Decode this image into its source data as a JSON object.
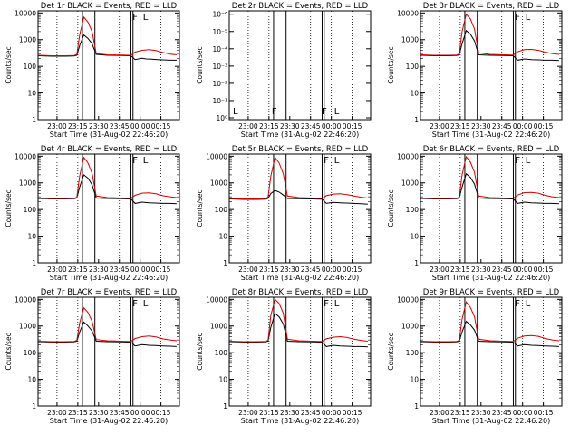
{
  "chart_data": {
    "type": "line",
    "xlabel": "Start Time (31-Aug-02 22:46:20)",
    "ylabel": "Counts/sec",
    "x_ticks": [
      "23:00",
      "23:15",
      "23:30",
      "23:45",
      "00:00",
      "00:15"
    ],
    "x_tick_minutes": [
      13.67,
      28.67,
      43.67,
      58.67,
      73.67,
      88.67
    ],
    "xlim_minutes": [
      0,
      102
    ],
    "yscale": "log",
    "ylim": [
      1,
      12000
    ],
    "y_ticks": [
      "1",
      "10",
      "100",
      "1000",
      "10000"
    ],
    "markers": {
      "solid_minutes": [
        32,
        41,
        67,
        68.5
      ],
      "dotted_minutes": [
        13.67,
        28.67,
        58.67,
        73.67,
        88.67
      ],
      "flags": [
        {
          "label": "F",
          "minutes": 67.5
        },
        {
          "label": "L",
          "minutes": 75
        }
      ]
    },
    "panels": [
      {
        "title": "Det 1r  BLACK = Events, RED = LLD",
        "series": [
          {
            "color": "#000000",
            "x": [
              0,
              10,
              20,
              26,
              28,
              30,
              33,
              36,
              39,
              42,
              50,
              60,
              65,
              67,
              70,
              75,
              78,
              82,
              86,
              90,
              95,
              100
            ],
            "y": [
              250,
              240,
              240,
              245,
              260,
              600,
              1500,
              1100,
              700,
              280,
              260,
              255,
              250,
              250,
              180,
              200,
              190,
              185,
              180,
              175,
              170,
              170
            ]
          },
          {
            "color": "#d40000",
            "x": [
              0,
              10,
              20,
              26,
              28,
              30,
              33,
              36,
              39,
              42,
              50,
              60,
              65,
              67,
              70,
              75,
              80,
              85,
              90,
              95,
              100
            ],
            "y": [
              260,
              250,
              250,
              255,
              280,
              1500,
              7000,
              4500,
              2000,
              300,
              270,
              265,
              260,
              260,
              340,
              400,
              420,
              390,
              330,
              290,
              270
            ]
          }
        ]
      },
      {
        "title": "Det 2r  BLACK = Events, RED = LLD",
        "y_ticks": [
          "10⁰",
          "10⁻¹",
          "10⁻²",
          "10⁻³",
          "10⁻⁴",
          "10⁻⁵",
          "10⁻⁶"
        ],
        "flags": [
          {
            "label": "L",
            "minutes": 2
          },
          {
            "label": "F",
            "minutes": 30
          },
          {
            "label": "F",
            "minutes": 66
          },
          {
            "label": "L",
            "minutes": 75
          }
        ],
        "series": []
      },
      {
        "title": "Det 3r  BLACK = Events, RED = LLD",
        "series": [
          {
            "color": "#000000",
            "x": [
              0,
              10,
              20,
              26,
              28,
              30,
              33,
              36,
              39,
              42,
              50,
              60,
              65,
              67,
              70,
              75,
              80,
              85,
              90,
              95,
              100
            ],
            "y": [
              260,
              250,
              250,
              255,
              270,
              700,
              2200,
              1600,
              900,
              270,
              260,
              255,
              250,
              250,
              170,
              190,
              180,
              175,
              170,
              170,
              165
            ]
          },
          {
            "color": "#d40000",
            "x": [
              0,
              10,
              20,
              26,
              28,
              30,
              33,
              36,
              39,
              42,
              50,
              60,
              65,
              67,
              70,
              75,
              80,
              85,
              90,
              95,
              100
            ],
            "y": [
              270,
              260,
              260,
              265,
              290,
              2000,
              9000,
              6000,
              2500,
              320,
              280,
              270,
              265,
              265,
              350,
              420,
              430,
              400,
              340,
              300,
              280
            ]
          }
        ]
      },
      {
        "title": "Det 4r  BLACK = Events, RED = LLD",
        "series": [
          {
            "color": "#000000",
            "x": [
              0,
              10,
              20,
              26,
              28,
              30,
              33,
              36,
              39,
              42,
              50,
              60,
              65,
              67,
              70,
              75,
              80,
              85,
              90,
              95,
              100
            ],
            "y": [
              260,
              250,
              250,
              255,
              270,
              700,
              2000,
              1500,
              850,
              270,
              260,
              255,
              250,
              250,
              170,
              190,
              180,
              175,
              170,
              170,
              165
            ]
          },
          {
            "color": "#d40000",
            "x": [
              0,
              10,
              20,
              26,
              28,
              30,
              33,
              36,
              39,
              42,
              50,
              60,
              65,
              67,
              70,
              75,
              80,
              85,
              90,
              95,
              100
            ],
            "y": [
              270,
              260,
              260,
              265,
              290,
              1800,
              9000,
              5500,
              2300,
              320,
              280,
              270,
              265,
              265,
              340,
              410,
              420,
              390,
              330,
              300,
              280
            ]
          }
        ]
      },
      {
        "title": "Det 5r  BLACK = Events, RED = LLD",
        "series": [
          {
            "color": "#000000",
            "x": [
              0,
              10,
              20,
              26,
              28,
              30,
              33,
              36,
              39,
              42,
              50,
              60,
              65,
              67,
              70,
              75,
              80,
              85,
              90,
              95,
              100
            ],
            "y": [
              250,
              240,
              240,
              245,
              260,
              400,
              520,
              450,
              350,
              260,
              255,
              250,
              245,
              245,
              170,
              185,
              180,
              175,
              170,
              165,
              160
            ]
          },
          {
            "color": "#d40000",
            "x": [
              0,
              10,
              20,
              26,
              28,
              30,
              33,
              36,
              39,
              42,
              50,
              60,
              65,
              67,
              70,
              75,
              80,
              85,
              90,
              95,
              100
            ],
            "y": [
              260,
              250,
              250,
              255,
              290,
              1800,
              9000,
              5500,
              2200,
              320,
              280,
              270,
              260,
              260,
              330,
              380,
              390,
              360,
              320,
              290,
              270
            ]
          }
        ]
      },
      {
        "title": "Det 6r  BLACK = Events, RED = LLD",
        "series": [
          {
            "color": "#000000",
            "x": [
              0,
              10,
              20,
              26,
              28,
              30,
              33,
              36,
              39,
              42,
              50,
              60,
              65,
              67,
              70,
              75,
              80,
              85,
              90,
              95,
              100
            ],
            "y": [
              260,
              250,
              250,
              255,
              270,
              700,
              2200,
              1600,
              900,
              270,
              260,
              255,
              250,
              250,
              170,
              190,
              180,
              175,
              170,
              170,
              165
            ]
          },
          {
            "color": "#d40000",
            "x": [
              0,
              10,
              20,
              26,
              28,
              30,
              33,
              36,
              39,
              42,
              50,
              60,
              65,
              67,
              70,
              75,
              80,
              85,
              90,
              95,
              100
            ],
            "y": [
              270,
              260,
              260,
              265,
              290,
              2000,
              9500,
              6000,
              2500,
              320,
              280,
              270,
              265,
              265,
              350,
              430,
              440,
              410,
              340,
              300,
              280
            ]
          }
        ]
      },
      {
        "title": "Det 7r  BLACK = Events, RED = LLD",
        "series": [
          {
            "color": "#000000",
            "x": [
              0,
              10,
              20,
              26,
              28,
              30,
              33,
              36,
              39,
              42,
              50,
              60,
              65,
              67,
              70,
              75,
              80,
              85,
              90,
              95,
              100
            ],
            "y": [
              260,
              250,
              250,
              255,
              270,
              600,
              1400,
              1000,
              650,
              270,
              260,
              255,
              250,
              250,
              180,
              200,
              190,
              185,
              180,
              175,
              170
            ]
          },
          {
            "color": "#d40000",
            "x": [
              0,
              10,
              20,
              26,
              28,
              30,
              33,
              36,
              39,
              42,
              50,
              60,
              65,
              67,
              70,
              75,
              80,
              85,
              90,
              95,
              100
            ],
            "y": [
              270,
              260,
              260,
              265,
              290,
              1300,
              4800,
              3200,
              1500,
              310,
              280,
              270,
              265,
              265,
              340,
              400,
              420,
              390,
              330,
              300,
              280
            ]
          }
        ]
      },
      {
        "title": "Det 8r  BLACK = Events, RED = LLD",
        "series": [
          {
            "color": "#000000",
            "x": [
              0,
              10,
              20,
              26,
              28,
              30,
              33,
              36,
              39,
              42,
              50,
              60,
              65,
              67,
              70,
              75,
              80,
              85,
              90,
              95,
              100
            ],
            "y": [
              260,
              250,
              250,
              255,
              270,
              900,
              3000,
              2200,
              1200,
              270,
              260,
              255,
              250,
              250,
              170,
              190,
              180,
              175,
              170,
              170,
              165
            ]
          },
          {
            "color": "#d40000",
            "x": [
              0,
              10,
              20,
              26,
              28,
              30,
              33,
              36,
              39,
              42,
              50,
              60,
              65,
              67,
              70,
              75,
              80,
              85,
              90,
              95,
              100
            ],
            "y": [
              270,
              260,
              260,
              265,
              290,
              2500,
              10000,
              7000,
              3000,
              320,
              280,
              270,
              265,
              265,
              330,
              380,
              400,
              370,
              320,
              290,
              270
            ]
          }
        ]
      },
      {
        "title": "Det 9r  BLACK = Events, RED = LLD",
        "series": [
          {
            "color": "#000000",
            "x": [
              0,
              10,
              20,
              26,
              28,
              30,
              33,
              36,
              39,
              42,
              50,
              60,
              65,
              67,
              70,
              75,
              80,
              85,
              90,
              95,
              100
            ],
            "y": [
              260,
              250,
              250,
              255,
              270,
              600,
              1500,
              1100,
              700,
              270,
              260,
              255,
              250,
              250,
              180,
              200,
              190,
              185,
              180,
              175,
              170
            ]
          },
          {
            "color": "#d40000",
            "x": [
              0,
              10,
              20,
              26,
              28,
              30,
              33,
              36,
              39,
              42,
              50,
              60,
              65,
              67,
              70,
              75,
              80,
              85,
              90,
              95,
              100
            ],
            "y": [
              270,
              260,
              260,
              265,
              290,
              1800,
              8000,
              5000,
              2200,
              320,
              280,
              270,
              265,
              265,
              350,
              420,
              440,
              410,
              340,
              300,
              280
            ]
          }
        ]
      }
    ]
  }
}
